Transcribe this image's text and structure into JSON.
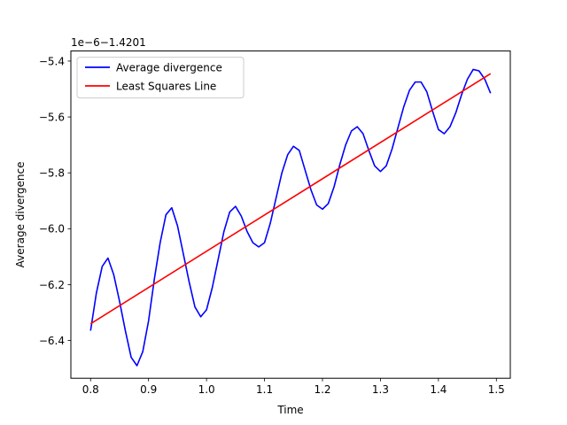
{
  "chart_data": {
    "type": "line",
    "title": "",
    "xlabel": "Time",
    "ylabel": "Average divergence",
    "y_offset_text": "1e−6−1.4201",
    "xlim": [
      0.766,
      1.524
    ],
    "ylim": [
      -6.535,
      -5.364
    ],
    "x_ticks": [
      0.8,
      0.9,
      1.0,
      1.1,
      1.2,
      1.3,
      1.4,
      1.5
    ],
    "x_tick_labels": [
      "0.8",
      "0.9",
      "1.0",
      "1.1",
      "1.2",
      "1.3",
      "1.4",
      "1.5"
    ],
    "y_ticks": [
      -6.4,
      -6.2,
      -6.0,
      -5.8,
      -5.6,
      -5.4
    ],
    "y_tick_labels": [
      "−6.4",
      "−6.2",
      "−6.0",
      "−5.8",
      "−5.6",
      "−5.4"
    ],
    "grid": false,
    "legend_position": "upper left",
    "series": [
      {
        "name": "Average divergence",
        "color": "#0000ff",
        "x": [
          0.8,
          0.81,
          0.82,
          0.83,
          0.84,
          0.85,
          0.86,
          0.87,
          0.88,
          0.89,
          0.9,
          0.91,
          0.92,
          0.93,
          0.94,
          0.95,
          0.96,
          0.97,
          0.98,
          0.99,
          1.0,
          1.01,
          1.02,
          1.03,
          1.04,
          1.05,
          1.06,
          1.07,
          1.08,
          1.09,
          1.1,
          1.11,
          1.12,
          1.13,
          1.14,
          1.15,
          1.16,
          1.17,
          1.18,
          1.19,
          1.2,
          1.21,
          1.22,
          1.23,
          1.24,
          1.25,
          1.26,
          1.27,
          1.28,
          1.29,
          1.3,
          1.31,
          1.32,
          1.33,
          1.34,
          1.35,
          1.36,
          1.37,
          1.38,
          1.39,
          1.4,
          1.41,
          1.42,
          1.43,
          1.44,
          1.45,
          1.46,
          1.47,
          1.48,
          1.49
        ],
        "y": [
          -6.365,
          -6.23,
          -6.135,
          -6.105,
          -6.165,
          -6.26,
          -6.365,
          -6.46,
          -6.49,
          -6.44,
          -6.33,
          -6.18,
          -6.05,
          -5.95,
          -5.925,
          -5.99,
          -6.09,
          -6.19,
          -6.28,
          -6.315,
          -6.29,
          -6.21,
          -6.11,
          -6.01,
          -5.94,
          -5.92,
          -5.955,
          -6.01,
          -6.05,
          -6.065,
          -6.05,
          -5.98,
          -5.89,
          -5.8,
          -5.735,
          -5.705,
          -5.72,
          -5.79,
          -5.86,
          -5.915,
          -5.93,
          -5.91,
          -5.85,
          -5.77,
          -5.7,
          -5.65,
          -5.635,
          -5.66,
          -5.72,
          -5.775,
          -5.795,
          -5.775,
          -5.715,
          -5.64,
          -5.565,
          -5.505,
          -5.475,
          -5.475,
          -5.51,
          -5.58,
          -5.645,
          -5.66,
          -5.635,
          -5.585,
          -5.52,
          -5.465,
          -5.43,
          -5.435,
          -5.465,
          -5.515
        ]
      },
      {
        "name": "Least Squares Line",
        "color": "#ff0000",
        "x": [
          0.8,
          1.49
        ],
        "y": [
          -6.34,
          -5.445
        ]
      }
    ]
  }
}
